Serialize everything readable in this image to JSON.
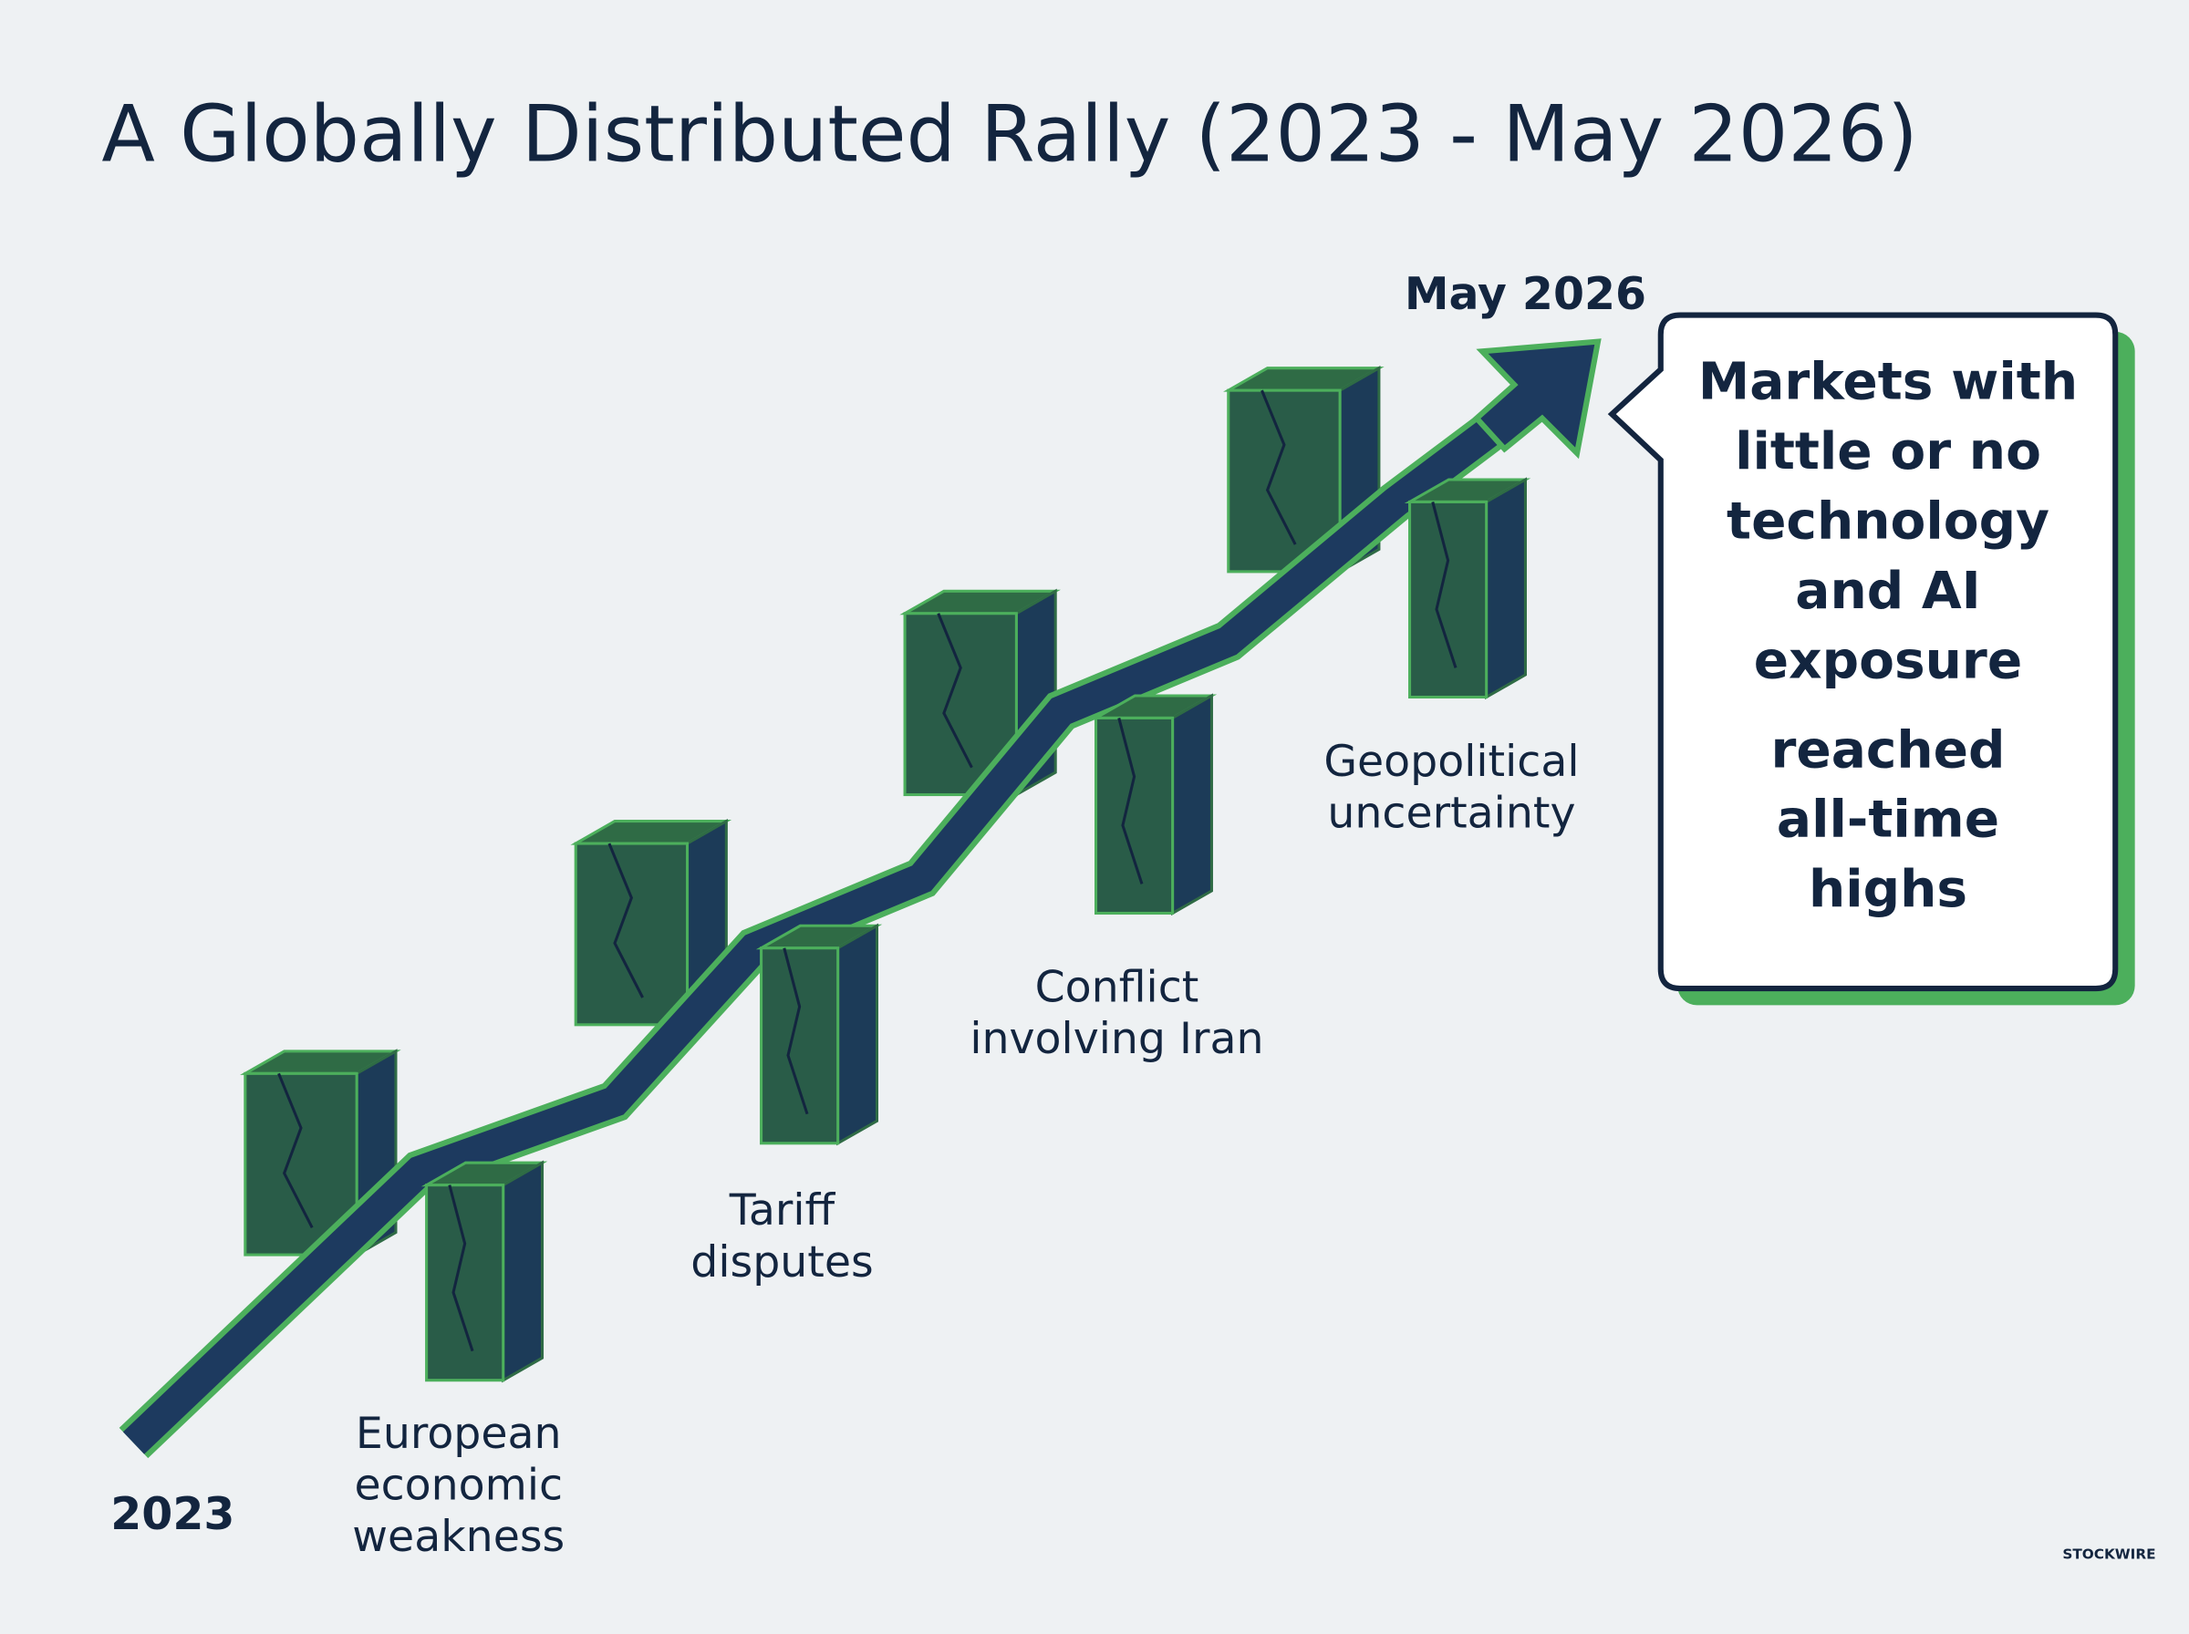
{
  "title": "A Globally Distributed Rally (2023 - May 2026)",
  "start_label": "2023",
  "end_label": "May 2026",
  "barriers": [
    {
      "lines": [
        "European",
        "economic",
        "weakness"
      ]
    },
    {
      "lines": [
        "Tariff",
        "disputes"
      ]
    },
    {
      "lines": [
        "Conflict",
        "involving Iran"
      ]
    },
    {
      "lines": [
        "Geopolitical",
        "uncertainty"
      ]
    }
  ],
  "callout": {
    "subject_lines": [
      "Markets with",
      "little or no",
      "technology",
      "and AI",
      "exposure"
    ],
    "result_lines": [
      "reached",
      "all-time",
      "highs"
    ]
  },
  "watermark": "STOCKWIRE"
}
